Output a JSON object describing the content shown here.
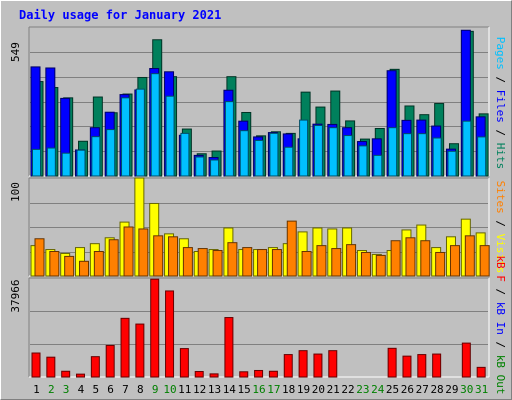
{
  "title": "Daily usage for January 2021",
  "colors": {
    "hits": "#00805c",
    "files": "#0000ff",
    "pages": "#00c0ff",
    "visits": "#ffff00",
    "sites": "#ff8000",
    "kbin": "#0000ff",
    "kbout": "#008000",
    "kbf": "#ff0000",
    "weekday_label": "#000000",
    "weekend_label": "#008000"
  },
  "chart_data": [
    {
      "type": "bar",
      "name": "hits-files-pages",
      "y_max_label": "549",
      "ylim": [
        0,
        549
      ],
      "grid": true,
      "axis_label": {
        "pages": "Pages",
        "files": "Files",
        "hits": "Hits",
        "sep": " / "
      },
      "categories": [
        "1",
        "2",
        "3",
        "4",
        "5",
        "6",
        "7",
        "8",
        "9",
        "10",
        "11",
        "12",
        "13",
        "14",
        "15",
        "16",
        "17",
        "18",
        "19",
        "20",
        "21",
        "22",
        "23",
        "24",
        "25",
        "26",
        "27",
        "28",
        "29",
        "30",
        "31"
      ],
      "series": [
        {
          "name": "Hits",
          "values": [
            348,
            326,
            288,
            128,
            291,
            233,
            302,
            363,
            502,
            366,
            173,
            82,
            92,
            366,
            234,
            148,
            163,
            157,
            309,
            254,
            313,
            203,
            136,
            175,
            393,
            258,
            226,
            267,
            119,
            533,
            229
          ]
        },
        {
          "name": "Files",
          "values": [
            402,
            398,
            286,
            96,
            178,
            235,
            300,
            317,
            396,
            384,
            150,
            76,
            68,
            316,
            202,
            144,
            160,
            155,
            137,
            191,
            190,
            178,
            127,
            137,
            388,
            205,
            206,
            184,
            99,
            537,
            218
          ]
        },
        {
          "name": "Pages",
          "values": [
            98,
            103,
            84,
            95,
            145,
            171,
            288,
            320,
            377,
            294,
            157,
            70,
            59,
            274,
            167,
            131,
            157,
            106,
            206,
            186,
            178,
            149,
            111,
            76,
            178,
            156,
            156,
            140,
            91,
            202,
            144
          ]
        }
      ]
    },
    {
      "type": "bar",
      "name": "visits-sites",
      "y_max_label": "100",
      "ylim": [
        0,
        100
      ],
      "grid": true,
      "axis_label": {
        "sites": "Sites",
        "visits": "Visits",
        "sep": " / "
      },
      "categories": [
        "1",
        "2",
        "3",
        "4",
        "5",
        "6",
        "7",
        "8",
        "9",
        "10",
        "11",
        "12",
        "13",
        "14",
        "15",
        "16",
        "17",
        "18",
        "19",
        "20",
        "21",
        "22",
        "23",
        "24",
        "25",
        "26",
        "27",
        "28",
        "29",
        "30",
        "31"
      ],
      "series": [
        {
          "name": "Visits",
          "values": [
            31,
            27,
            23,
            29,
            33,
            39,
            55,
            100,
            74,
            43,
            38,
            25,
            27,
            49,
            27,
            27,
            29,
            33,
            45,
            49,
            48,
            49,
            26,
            22,
            26,
            47,
            52,
            29,
            40,
            58,
            44
          ]
        },
        {
          "name": "Sites",
          "values": [
            38,
            25,
            20,
            15,
            25,
            37,
            50,
            48,
            41,
            40,
            29,
            28,
            26,
            34,
            29,
            27,
            27,
            56,
            25,
            31,
            28,
            32,
            24,
            21,
            36,
            39,
            36,
            24,
            31,
            41,
            31
          ]
        }
      ]
    },
    {
      "type": "bar",
      "name": "kbytes",
      "y_max_label": "37966",
      "ylim": [
        0,
        37966
      ],
      "grid": true,
      "axis_label": {
        "kbf": "kB F",
        "kbin": "kB In",
        "kbout": "kB Out",
        "sep": " / "
      },
      "categories": [
        "1",
        "2",
        "3",
        "4",
        "5",
        "6",
        "7",
        "8",
        "9",
        "10",
        "11",
        "12",
        "13",
        "14",
        "15",
        "16",
        "17",
        "18",
        "19",
        "20",
        "21",
        "22",
        "23",
        "24",
        "25",
        "26",
        "27",
        "28",
        "29",
        "30",
        "31"
      ],
      "series": [
        {
          "name": "kB F",
          "values": [
            9200,
            7600,
            2200,
            1100,
            7800,
            12100,
            22500,
            20300,
            37500,
            33000,
            10900,
            2100,
            1200,
            22800,
            2000,
            2500,
            2200,
            8600,
            10100,
            8800,
            10100,
            0,
            0,
            0,
            11000,
            8000,
            8600,
            8800,
            0,
            13000,
            3700
          ]
        }
      ]
    }
  ],
  "days": [
    {
      "label": "1",
      "weekend": false
    },
    {
      "label": "2",
      "weekend": true
    },
    {
      "label": "3",
      "weekend": true
    },
    {
      "label": "4",
      "weekend": false
    },
    {
      "label": "5",
      "weekend": false
    },
    {
      "label": "6",
      "weekend": false
    },
    {
      "label": "7",
      "weekend": false
    },
    {
      "label": "8",
      "weekend": false
    },
    {
      "label": "9",
      "weekend": true
    },
    {
      "label": "10",
      "weekend": true
    },
    {
      "label": "11",
      "weekend": false
    },
    {
      "label": "12",
      "weekend": false
    },
    {
      "label": "13",
      "weekend": false
    },
    {
      "label": "14",
      "weekend": false
    },
    {
      "label": "15",
      "weekend": false
    },
    {
      "label": "16",
      "weekend": true
    },
    {
      "label": "17",
      "weekend": true
    },
    {
      "label": "18",
      "weekend": false
    },
    {
      "label": "19",
      "weekend": false
    },
    {
      "label": "20",
      "weekend": false
    },
    {
      "label": "21",
      "weekend": false
    },
    {
      "label": "22",
      "weekend": false
    },
    {
      "label": "23",
      "weekend": true
    },
    {
      "label": "24",
      "weekend": true
    },
    {
      "label": "25",
      "weekend": false
    },
    {
      "label": "26",
      "weekend": false
    },
    {
      "label": "27",
      "weekend": false
    },
    {
      "label": "28",
      "weekend": false
    },
    {
      "label": "29",
      "weekend": false
    },
    {
      "label": "30",
      "weekend": true
    },
    {
      "label": "31",
      "weekend": true
    }
  ]
}
